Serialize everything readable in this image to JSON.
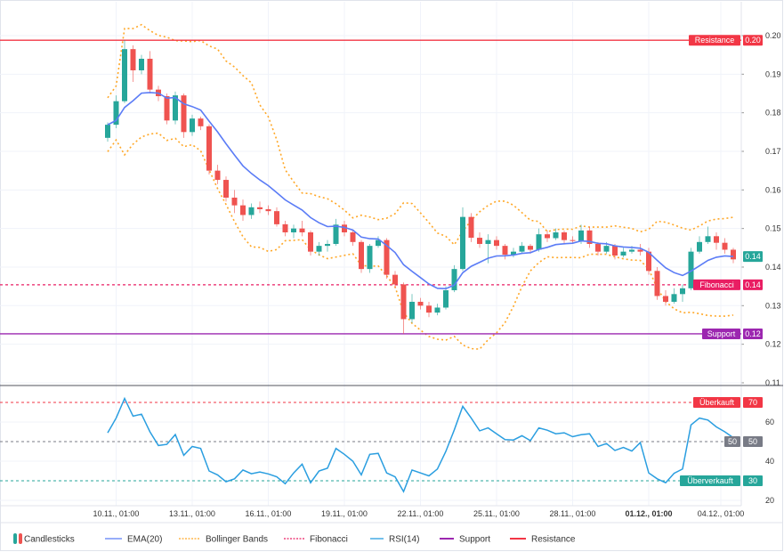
{
  "chart_data": [
    {
      "type": "candlestick",
      "pane": "price",
      "x_tick_labels": [
        "10.11., 01:00",
        "13.11., 01:00",
        "16.11., 01:00",
        "19.11., 01:00",
        "22.11., 01:00",
        "25.11., 01:00",
        "28.11., 01:00",
        "01.12., 01:00",
        "04.12., 01:00"
      ],
      "y_tick_labels": [
        "0.20",
        "0.19",
        "0.18",
        "0.17",
        "0.16",
        "0.15",
        "0.14",
        "0.13",
        "0.12",
        "0.11"
      ],
      "y_ticks": [
        0.2,
        0.19,
        0.18,
        0.17,
        0.16,
        0.15,
        0.14,
        0.13,
        0.12,
        0.11
      ],
      "ylim": [
        0.11,
        0.2
      ],
      "grid": true,
      "candles_ohlc": [
        [
          0.1735,
          0.1775,
          0.1725,
          0.1769
        ],
        [
          0.1769,
          0.1845,
          0.176,
          0.183
        ],
        [
          0.183,
          0.1988,
          0.1825,
          0.1965
        ],
        [
          0.1965,
          0.1975,
          0.188,
          0.191
        ],
        [
          0.191,
          0.195,
          0.19,
          0.194
        ],
        [
          0.194,
          0.196,
          0.185,
          0.186
        ],
        [
          0.186,
          0.187,
          0.183,
          0.1843
        ],
        [
          0.1843,
          0.185,
          0.177,
          0.178
        ],
        [
          0.178,
          0.1855,
          0.177,
          0.1845
        ],
        [
          0.1845,
          0.185,
          0.1735,
          0.175
        ],
        [
          0.175,
          0.1795,
          0.174,
          0.1785
        ],
        [
          0.1785,
          0.179,
          0.1755,
          0.1765
        ],
        [
          0.1765,
          0.177,
          0.164,
          0.165
        ],
        [
          0.165,
          0.1665,
          0.1615,
          0.1626
        ],
        [
          0.1626,
          0.1635,
          0.157,
          0.158
        ],
        [
          0.158,
          0.16,
          0.154,
          0.156
        ],
        [
          0.156,
          0.1575,
          0.152,
          0.1535
        ],
        [
          0.1535,
          0.1565,
          0.1525,
          0.1555
        ],
        [
          0.1555,
          0.157,
          0.154,
          0.155
        ],
        [
          0.155,
          0.156,
          0.1535,
          0.1545
        ],
        [
          0.1545,
          0.1555,
          0.1505,
          0.1511
        ],
        [
          0.1511,
          0.152,
          0.148,
          0.149
        ],
        [
          0.149,
          0.151,
          0.1475,
          0.15
        ],
        [
          0.15,
          0.152,
          0.148,
          0.149
        ],
        [
          0.149,
          0.1495,
          0.143,
          0.144
        ],
        [
          0.144,
          0.1465,
          0.143,
          0.1455
        ],
        [
          0.1455,
          0.147,
          0.144,
          0.146
        ],
        [
          0.146,
          0.1525,
          0.1455,
          0.151
        ],
        [
          0.151,
          0.152,
          0.148,
          0.149
        ],
        [
          0.149,
          0.1495,
          0.1455,
          0.1465
        ],
        [
          0.1465,
          0.147,
          0.1385,
          0.1395
        ],
        [
          0.1395,
          0.146,
          0.1385,
          0.1455
        ],
        [
          0.1455,
          0.148,
          0.145,
          0.147
        ],
        [
          0.147,
          0.1475,
          0.137,
          0.138
        ],
        [
          0.138,
          0.139,
          0.1345,
          0.1355
        ],
        [
          0.1355,
          0.136,
          0.1227,
          0.1265
        ],
        [
          0.1265,
          0.133,
          0.1255,
          0.131
        ],
        [
          0.131,
          0.132,
          0.129,
          0.13
        ],
        [
          0.13,
          0.131,
          0.127,
          0.1282
        ],
        [
          0.1282,
          0.1305,
          0.1275,
          0.1295
        ],
        [
          0.1295,
          0.135,
          0.129,
          0.134
        ],
        [
          0.134,
          0.1405,
          0.1335,
          0.1395
        ],
        [
          0.1395,
          0.1555,
          0.139,
          0.153
        ],
        [
          0.153,
          0.154,
          0.1465,
          0.1476
        ],
        [
          0.1476,
          0.149,
          0.145,
          0.146
        ],
        [
          0.146,
          0.1485,
          0.141,
          0.147
        ],
        [
          0.147,
          0.148,
          0.1445,
          0.1455
        ],
        [
          0.1455,
          0.146,
          0.142,
          0.1432
        ],
        [
          0.1432,
          0.145,
          0.1425,
          0.144
        ],
        [
          0.144,
          0.1465,
          0.1435,
          0.1455
        ],
        [
          0.1455,
          0.146,
          0.1435,
          0.1445
        ],
        [
          0.1445,
          0.15,
          0.144,
          0.1485
        ],
        [
          0.1485,
          0.1495,
          0.1465,
          0.1475
        ],
        [
          0.1475,
          0.15,
          0.147,
          0.149
        ],
        [
          0.149,
          0.1495,
          0.146,
          0.147
        ],
        [
          0.147,
          0.148,
          0.146,
          0.1468
        ],
        [
          0.1468,
          0.151,
          0.146,
          0.1495
        ],
        [
          0.1495,
          0.1505,
          0.145,
          0.146
        ],
        [
          0.146,
          0.1465,
          0.143,
          0.144
        ],
        [
          0.144,
          0.1465,
          0.1435,
          0.1455
        ],
        [
          0.1455,
          0.146,
          0.142,
          0.143
        ],
        [
          0.143,
          0.145,
          0.1425,
          0.144
        ],
        [
          0.144,
          0.1455,
          0.1435,
          0.1445
        ],
        [
          0.1445,
          0.146,
          0.143,
          0.144
        ],
        [
          0.144,
          0.145,
          0.138,
          0.139
        ],
        [
          0.139,
          0.14,
          0.1315,
          0.1325
        ],
        [
          0.1325,
          0.134,
          0.13,
          0.131
        ],
        [
          0.131,
          0.1345,
          0.1305,
          0.133
        ],
        [
          0.133,
          0.1355,
          0.131,
          0.1345
        ],
        [
          0.1345,
          0.145,
          0.134,
          0.144
        ],
        [
          0.144,
          0.148,
          0.1435,
          0.1465
        ],
        [
          0.1465,
          0.1505,
          0.146,
          0.148
        ],
        [
          0.148,
          0.149,
          0.1445,
          0.1463
        ],
        [
          0.1463,
          0.1475,
          0.1435,
          0.1445
        ],
        [
          0.1445,
          0.145,
          0.141,
          0.142
        ]
      ],
      "indicators": {
        "ema_label": "EMA(20)",
        "bollinger_label": "Bollinger Bands"
      },
      "levels": [
        {
          "name": "Resistance",
          "value": 0.1988,
          "label": "Resistance",
          "value_label": "0.20",
          "style": "solid",
          "color": "#f23645"
        },
        {
          "name": "Fibonacci",
          "value": 0.1354,
          "label": "Fibonacci",
          "value_label": "0.14",
          "style": "dashed",
          "color": "#e91e63"
        },
        {
          "name": "Support",
          "value": 0.1227,
          "label": "Support",
          "value_label": "0.12",
          "style": "solid",
          "color": "#9c27b0"
        }
      ],
      "last_price_label": "0.14"
    },
    {
      "type": "line",
      "pane": "rsi",
      "series": [
        {
          "name": "RSI(14)",
          "values": [
            54.5,
            62,
            72,
            63,
            64,
            55,
            48,
            48.6,
            53.6,
            43,
            47.5,
            46.5,
            35,
            33,
            29.5,
            31,
            35.5,
            33.6,
            34.5,
            33.5,
            32,
            28.5,
            34,
            38.5,
            29,
            35,
            36.4,
            46.5,
            43.5,
            40,
            33,
            43.5,
            44,
            34,
            32,
            24.5,
            35.5,
            34,
            32.5,
            36,
            45,
            56,
            68,
            62,
            55.5,
            57,
            54,
            51,
            50.8,
            53,
            50.5,
            57,
            55.8,
            54,
            54.5,
            52.5,
            53.5,
            54,
            47.5,
            49,
            45.5,
            47,
            45.2,
            49.5,
            34,
            31,
            29,
            33.8,
            36,
            58.5,
            62,
            61,
            57.5,
            55,
            52
          ]
        }
      ],
      "ylim": [
        20,
        75
      ],
      "y_tick_labels": [
        "60",
        "40",
        "20"
      ],
      "y_ticks": [
        60,
        40,
        20
      ],
      "levels": [
        {
          "value": 70,
          "label": "Überkauft",
          "value_label": "70",
          "color": "#f23645"
        },
        {
          "value": 50,
          "label": "50",
          "value_label": "50",
          "color": "#787b86"
        },
        {
          "value": 30,
          "label": "Überverkauft",
          "value_label": "30",
          "color": "#26a69a"
        }
      ]
    }
  ],
  "legend": [
    {
      "label": "Candlesticks",
      "icon": "candlestick-icon"
    },
    {
      "label": "EMA(20)",
      "icon": "line-icon",
      "color": "#5b7cf6"
    },
    {
      "label": "Bollinger Bands",
      "icon": "dotted-line-icon",
      "color": "#ffa726"
    },
    {
      "label": "Fibonacci",
      "icon": "dotted-line-icon",
      "color": "#e91e63"
    },
    {
      "label": "RSI(14)",
      "icon": "line-icon",
      "color": "#2a9ee0"
    },
    {
      "label": "Support",
      "icon": "thick-line-icon",
      "color": "#9c27b0"
    },
    {
      "label": "Resistance",
      "icon": "thick-line-icon",
      "color": "#f23645"
    }
  ],
  "colors": {
    "up": "#26a69a",
    "down": "#ef5350",
    "ema": "#5b7cf6",
    "bollinger": "#ffa726",
    "rsi": "#2a9ee0"
  }
}
